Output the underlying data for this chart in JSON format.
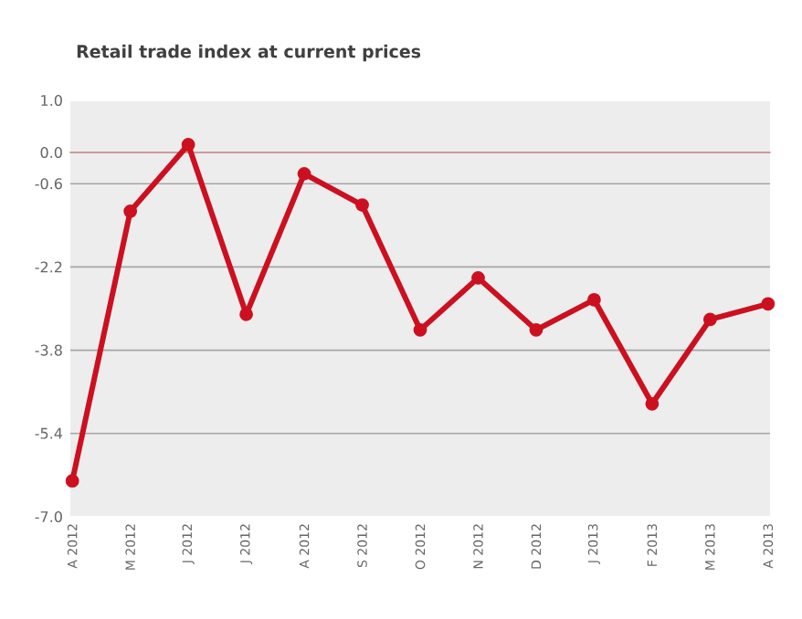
{
  "chart_data": {
    "type": "line",
    "title": "Retail trade index at current prices",
    "categories": [
      "A 2012",
      "M 2012",
      "J 2012",
      "J 2012",
      "A 2012",
      "S 2012",
      "O 2012",
      "N 2012",
      "D 2012",
      "J 2013",
      "F 2013",
      "M 2013",
      "A 2013"
    ],
    "series": [
      {
        "color": "#cc1020",
        "values": [
          -6.31,
          -1.13,
          0.15,
          -3.11,
          -0.41,
          -1.01,
          -3.41,
          -2.41,
          -3.41,
          -2.83,
          -4.83,
          -3.21,
          -2.91
        ]
      }
    ],
    "ylim": [
      -7.0,
      1.0
    ],
    "yticks": [
      {
        "value": 1.0,
        "label": "1.0"
      },
      {
        "value": 0.0,
        "label": "0.0"
      },
      -0.6,
      -2.2,
      -3.8,
      -5.4,
      {
        "value": -7.0,
        "label": "-7.0"
      }
    ],
    "grid": "y",
    "marker": "circle",
    "line_style": "solid",
    "ref_lines": [
      {
        "axis": "y",
        "value": 0.0,
        "color": "#e08080"
      }
    ]
  }
}
